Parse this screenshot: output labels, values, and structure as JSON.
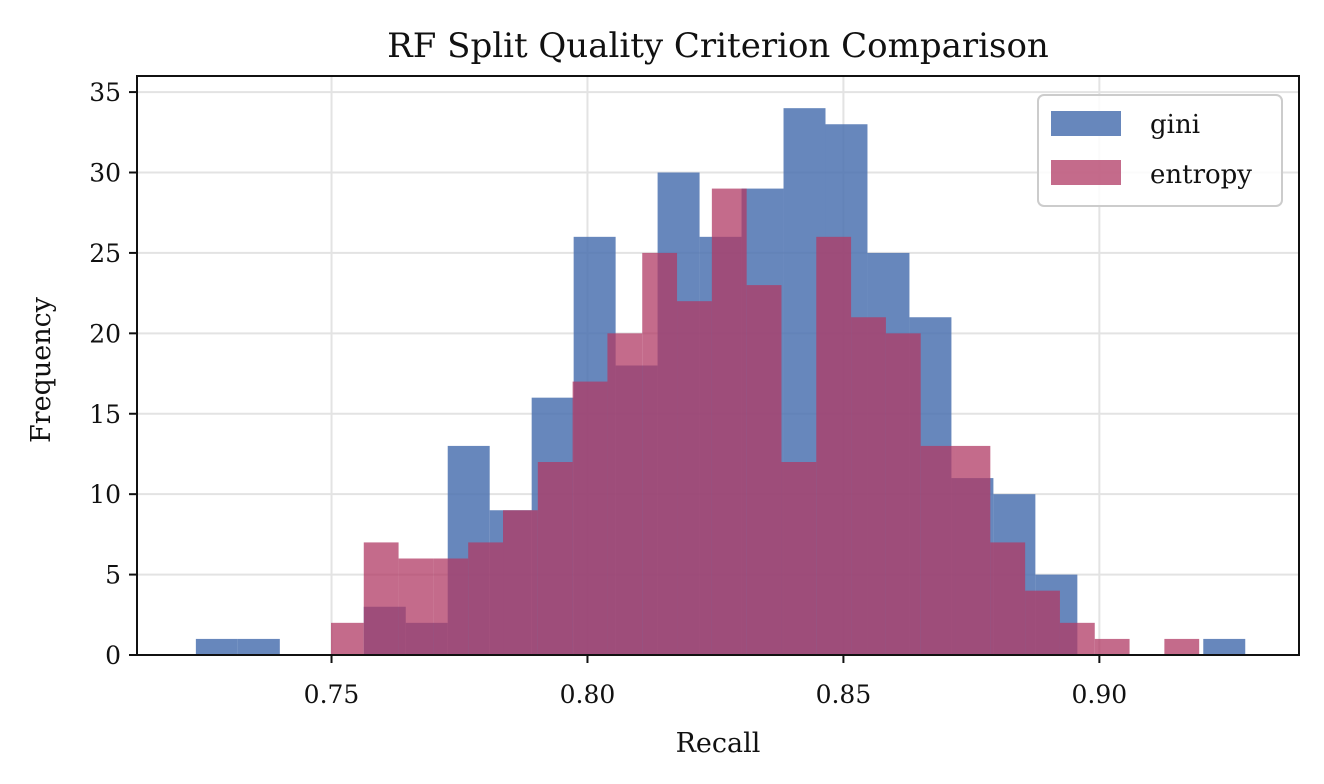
{
  "chart_data": {
    "type": "histogram",
    "title": "RF Split Quality Criterion Comparison",
    "xlabel": "Recall",
    "ylabel": "Frequency",
    "xlim": [
      0.712,
      0.939
    ],
    "ylim": [
      0,
      36
    ],
    "xticks": [
      0.75,
      0.8,
      0.85,
      0.9
    ],
    "xtick_labels": [
      "0.75",
      "0.80",
      "0.85",
      "0.90"
    ],
    "yticks": [
      0,
      5,
      10,
      15,
      20,
      25,
      30,
      35
    ],
    "ytick_labels": [
      "0",
      "5",
      "10",
      "15",
      "20",
      "25",
      "30",
      "35"
    ],
    "grid": true,
    "legend_position": "top-right",
    "series": [
      {
        "name": "gini",
        "color": "#4c72b0",
        "opacity": 0.85,
        "bins": [
          [
            0.7235,
            0.7317,
            1
          ],
          [
            0.7317,
            0.7399,
            1
          ],
          [
            0.7563,
            0.7645,
            3
          ],
          [
            0.7645,
            0.7727,
            2
          ],
          [
            0.7727,
            0.7809,
            13
          ],
          [
            0.7809,
            0.7891,
            9
          ],
          [
            0.7891,
            0.7973,
            16
          ],
          [
            0.7973,
            0.8055,
            26
          ],
          [
            0.8055,
            0.8137,
            18
          ],
          [
            0.8137,
            0.8219,
            30
          ],
          [
            0.8219,
            0.8301,
            26
          ],
          [
            0.8301,
            0.8383,
            29
          ],
          [
            0.8383,
            0.8465,
            34
          ],
          [
            0.8465,
            0.8547,
            33
          ],
          [
            0.8547,
            0.8629,
            25
          ],
          [
            0.8629,
            0.8711,
            21
          ],
          [
            0.8711,
            0.8793,
            11
          ],
          [
            0.8793,
            0.8875,
            10
          ],
          [
            0.8875,
            0.8957,
            5
          ],
          [
            0.9203,
            0.9285,
            1
          ]
        ]
      },
      {
        "name": "entropy",
        "color": "#b03a64",
        "opacity": 0.75,
        "bins": [
          [
            0.7499,
            0.7563,
            2
          ],
          [
            0.7563,
            0.7631,
            7
          ],
          [
            0.7631,
            0.7699,
            6
          ],
          [
            0.7699,
            0.7767,
            6
          ],
          [
            0.7767,
            0.7835,
            7
          ],
          [
            0.7835,
            0.7903,
            9
          ],
          [
            0.7903,
            0.7971,
            12
          ],
          [
            0.7971,
            0.8039,
            17
          ],
          [
            0.8039,
            0.8107,
            20
          ],
          [
            0.8107,
            0.8175,
            25
          ],
          [
            0.8175,
            0.8243,
            22
          ],
          [
            0.8243,
            0.8311,
            29
          ],
          [
            0.8311,
            0.8379,
            23
          ],
          [
            0.8379,
            0.8447,
            12
          ],
          [
            0.8447,
            0.8515,
            26
          ],
          [
            0.8515,
            0.8583,
            21
          ],
          [
            0.8583,
            0.8651,
            20
          ],
          [
            0.8651,
            0.8719,
            13
          ],
          [
            0.8719,
            0.8787,
            13
          ],
          [
            0.8787,
            0.8855,
            7
          ],
          [
            0.8855,
            0.8923,
            4
          ],
          [
            0.8923,
            0.8991,
            2
          ],
          [
            0.8991,
            0.9059,
            1
          ],
          [
            0.9127,
            0.9195,
            1
          ]
        ]
      }
    ]
  }
}
